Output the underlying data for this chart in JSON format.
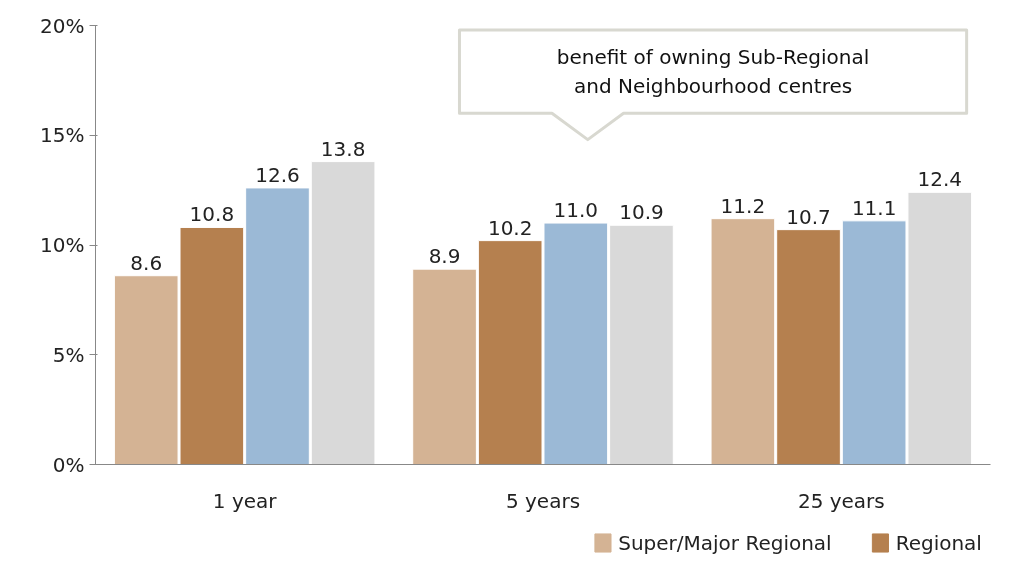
{
  "chart_data": {
    "type": "bar",
    "categories": [
      "1 year",
      "5 years",
      "25 years"
    ],
    "series": [
      {
        "name": "Super/Major Regional",
        "color": "#d4b394",
        "values": [
          8.6,
          8.9,
          11.2
        ],
        "value_labels": [
          "8.6",
          "8.9",
          "11.2"
        ]
      },
      {
        "name": "Regional",
        "color": "#b5804f",
        "values": [
          10.8,
          10.2,
          10.7
        ],
        "value_labels": [
          "10.8",
          "10.2",
          "10.7"
        ]
      },
      {
        "color": "#9bb9d6",
        "values": [
          12.6,
          11.0,
          11.1
        ],
        "value_labels": [
          "12.6",
          "11.0",
          "11.1"
        ]
      },
      {
        "color": "#d9d9d9",
        "values": [
          13.8,
          10.9,
          12.4
        ],
        "value_labels": [
          "13.8",
          "10.9",
          "12.4"
        ]
      }
    ],
    "ylim": [
      0,
      20
    ],
    "yticks": [
      {
        "value": 0,
        "label": "0%"
      },
      {
        "value": 5,
        "label": "5%"
      },
      {
        "value": 10,
        "label": "10%"
      },
      {
        "value": 15,
        "label": "15%"
      },
      {
        "value": 20,
        "label": "20%"
      }
    ],
    "grid": false,
    "legend": "bottom right",
    "annotations": [
      "benefit of owning Sub-Regional and Neighbourhood centres"
    ]
  }
}
